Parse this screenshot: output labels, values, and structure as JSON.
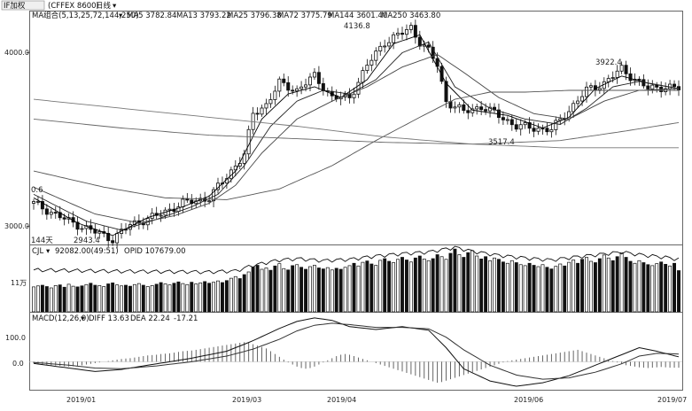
{
  "header": {
    "tab_label": "IF加权",
    "instrument": "(CFFEX 8600)",
    "period": "日线",
    "indicator_group": "MA组合(5,13,25,72,144,250)",
    "ma_readouts": [
      "MA5 3782.84",
      "MA13 3793.22",
      "MA25 3796.38",
      "MA72 3775.79",
      "MA144 3601.40",
      "MA250 3463.80"
    ]
  },
  "price_axis": {
    "ticks": [
      "4000.0",
      "3000.0"
    ],
    "range": [
      2920,
      4220
    ]
  },
  "annotations": {
    "high_label": "4136.8",
    "second_high_label": "3922.4",
    "mid_low_label": "3517.4",
    "low_label": "2943.4",
    "left_partial_label": "0.6",
    "days_label": "144天"
  },
  "volume_panel": {
    "header": "CJL",
    "cjl_value": "92082.00(49:51)",
    "opid": "OPID 107679.00",
    "tick": "11万"
  },
  "macd_panel": {
    "header": "MACD(12,26,9)",
    "diff": "DIFF 13.63",
    "dea": "DEA 22.24",
    "value": "-17.21",
    "ticks": [
      "100.0",
      "0.0"
    ]
  },
  "x_axis": {
    "labels": [
      "2019/01",
      "2019/03",
      "2019/04",
      "2019/06",
      "2019/07"
    ]
  },
  "chart_data": {
    "type": "candlestick",
    "x_range": [
      "2018-12-17",
      "2019-07-01"
    ],
    "price_anchors": {
      "points": [
        [
          0,
          3150
        ],
        [
          8,
          3050
        ],
        [
          14,
          2990
        ],
        [
          18,
          2950
        ],
        [
          22,
          3030
        ],
        [
          28,
          3080
        ],
        [
          34,
          3150
        ],
        [
          40,
          3180
        ],
        [
          44,
          3300
        ],
        [
          48,
          3420
        ],
        [
          50,
          3650
        ],
        [
          53,
          3700
        ],
        [
          56,
          3820
        ],
        [
          60,
          3780
        ],
        [
          64,
          3860
        ],
        [
          68,
          3740
        ],
        [
          72,
          3740
        ],
        [
          76,
          3920
        ],
        [
          80,
          4050
        ],
        [
          84,
          4100
        ],
        [
          86,
          4130
        ],
        [
          88,
          4050
        ],
        [
          90,
          4000
        ],
        [
          92,
          3920
        ],
        [
          94,
          3720
        ],
        [
          98,
          3660
        ],
        [
          102,
          3690
        ],
        [
          106,
          3640
        ],
        [
          110,
          3580
        ],
        [
          114,
          3570
        ],
        [
          118,
          3560
        ],
        [
          122,
          3670
        ],
        [
          126,
          3780
        ],
        [
          130,
          3820
        ],
        [
          134,
          3900
        ],
        [
          136,
          3860
        ],
        [
          140,
          3790
        ],
        [
          144,
          3800
        ],
        [
          147,
          3790
        ]
      ]
    },
    "moving_averages": [
      {
        "name": "MA5",
        "color": "#000000",
        "points": [
          [
            0,
            3180
          ],
          [
            10,
            3040
          ],
          [
            18,
            2970
          ],
          [
            26,
            3070
          ],
          [
            34,
            3130
          ],
          [
            40,
            3190
          ],
          [
            46,
            3330
          ],
          [
            52,
            3620
          ],
          [
            58,
            3760
          ],
          [
            64,
            3800
          ],
          [
            70,
            3740
          ],
          [
            76,
            3840
          ],
          [
            82,
            4040
          ],
          [
            88,
            4090
          ],
          [
            94,
            3820
          ],
          [
            100,
            3670
          ],
          [
            108,
            3640
          ],
          [
            116,
            3570
          ],
          [
            122,
            3630
          ],
          [
            128,
            3790
          ],
          [
            134,
            3860
          ],
          [
            140,
            3820
          ],
          [
            147,
            3790
          ]
        ]
      },
      {
        "name": "MA13",
        "color": "#222222",
        "points": [
          [
            0,
            3200
          ],
          [
            12,
            3050
          ],
          [
            20,
            3000
          ],
          [
            28,
            3060
          ],
          [
            36,
            3130
          ],
          [
            42,
            3200
          ],
          [
            48,
            3360
          ],
          [
            54,
            3580
          ],
          [
            60,
            3720
          ],
          [
            66,
            3780
          ],
          [
            72,
            3760
          ],
          [
            78,
            3840
          ],
          [
            84,
            3990
          ],
          [
            90,
            4050
          ],
          [
            96,
            3800
          ],
          [
            104,
            3680
          ],
          [
            112,
            3620
          ],
          [
            120,
            3590
          ],
          [
            126,
            3680
          ],
          [
            132,
            3800
          ],
          [
            138,
            3830
          ],
          [
            147,
            3790
          ]
        ]
      },
      {
        "name": "MA25",
        "color": "#444444",
        "points": [
          [
            0,
            3240
          ],
          [
            14,
            3090
          ],
          [
            24,
            3040
          ],
          [
            32,
            3080
          ],
          [
            40,
            3150
          ],
          [
            46,
            3250
          ],
          [
            52,
            3430
          ],
          [
            60,
            3620
          ],
          [
            68,
            3720
          ],
          [
            76,
            3800
          ],
          [
            84,
            3910
          ],
          [
            92,
            3980
          ],
          [
            98,
            3880
          ],
          [
            106,
            3740
          ],
          [
            114,
            3650
          ],
          [
            122,
            3620
          ],
          [
            130,
            3720
          ],
          [
            138,
            3780
          ],
          [
            147,
            3790
          ]
        ]
      },
      {
        "name": "MA72",
        "color": "#555555",
        "points": [
          [
            0,
            3330
          ],
          [
            16,
            3240
          ],
          [
            30,
            3180
          ],
          [
            44,
            3170
          ],
          [
            56,
            3230
          ],
          [
            68,
            3360
          ],
          [
            78,
            3500
          ],
          [
            88,
            3630
          ],
          [
            96,
            3730
          ],
          [
            104,
            3770
          ],
          [
            112,
            3770
          ],
          [
            122,
            3780
          ],
          [
            134,
            3780
          ],
          [
            147,
            3780
          ]
        ]
      },
      {
        "name": "MA144",
        "color": "#666666",
        "points": [
          [
            0,
            3620
          ],
          [
            20,
            3570
          ],
          [
            40,
            3530
          ],
          [
            60,
            3510
          ],
          [
            80,
            3490
          ],
          [
            100,
            3480
          ],
          [
            120,
            3500
          ],
          [
            134,
            3550
          ],
          [
            147,
            3600
          ]
        ]
      },
      {
        "name": "MA250",
        "color": "#777777",
        "points": [
          [
            0,
            3730
          ],
          [
            20,
            3680
          ],
          [
            40,
            3630
          ],
          [
            60,
            3580
          ],
          [
            80,
            3520
          ],
          [
            100,
            3480
          ],
          [
            120,
            3460
          ],
          [
            147,
            3460
          ]
        ]
      }
    ],
    "volume": {
      "values": [
        7.5,
        7.8,
        8.0,
        7.6,
        7.2,
        7.9,
        8.1,
        7.4,
        8.3,
        7.7,
        7.5,
        7.8,
        8.2,
        8.6,
        8.0,
        7.9,
        7.6,
        8.4,
        8.7,
        8.1,
        7.8,
        8.0,
        7.7,
        8.2,
        8.5,
        8.0,
        7.6,
        7.9,
        8.3,
        8.8,
        8.4,
        8.1,
        8.6,
        9.0,
        8.5,
        8.2,
        8.9,
        8.4,
        8.7,
        9.1,
        8.6,
        8.9,
        9.3,
        8.8,
        9.4,
        10.1,
        10.6,
        10.0,
        11.2,
        12.0,
        13.5,
        14.0,
        12.8,
        13.2,
        12.5,
        13.8,
        14.5,
        13.0,
        12.6,
        13.9,
        14.2,
        13.4,
        12.8,
        13.6,
        14.0,
        13.2,
        12.9,
        13.3,
        12.6,
        13.1,
        12.8,
        13.4,
        13.9,
        14.6,
        13.8,
        14.9,
        15.3,
        14.4,
        14.0,
        15.5,
        16.0,
        15.2,
        14.8,
        15.8,
        16.4,
        15.6,
        15.0,
        16.2,
        16.8,
        15.9,
        15.4,
        16.0,
        17.2,
        16.6,
        15.8,
        17.6,
        18.9,
        17.2,
        16.4,
        17.8,
        18.4,
        16.8,
        15.9,
        16.6,
        15.4,
        16.2,
        15.8,
        15.0,
        14.6,
        15.4,
        14.8,
        14.2,
        13.9,
        14.6,
        14.0,
        13.6,
        14.2,
        13.4,
        12.9,
        13.7,
        14.4,
        13.8,
        14.9,
        15.6,
        14.6,
        15.8,
        16.4,
        15.2,
        14.8,
        16.0,
        17.1,
        16.2,
        15.4,
        16.6,
        17.8,
        16.4,
        15.2,
        14.6,
        15.4,
        14.8,
        14.2,
        13.9,
        14.5,
        15.0,
        14.3,
        13.8,
        14.6,
        12.4
      ],
      "opid_points": [
        [
          0,
          12.6
        ],
        [
          10,
          12.4
        ],
        [
          20,
          12.2
        ],
        [
          30,
          12.1
        ],
        [
          40,
          12.0
        ],
        [
          46,
          12.3
        ],
        [
          50,
          14.0
        ],
        [
          56,
          15.6
        ],
        [
          60,
          16.0
        ],
        [
          66,
          15.4
        ],
        [
          72,
          15.8
        ],
        [
          78,
          16.8
        ],
        [
          84,
          17.5
        ],
        [
          90,
          18.0
        ],
        [
          96,
          19.4
        ],
        [
          100,
          18.2
        ],
        [
          106,
          17.0
        ],
        [
          112,
          16.2
        ],
        [
          118,
          15.6
        ],
        [
          124,
          16.6
        ],
        [
          130,
          17.4
        ],
        [
          134,
          18.0
        ],
        [
          138,
          17.2
        ],
        [
          144,
          16.4
        ],
        [
          147,
          15.8
        ]
      ]
    },
    "macd": {
      "histogram": [
        -4,
        -6,
        -8,
        -9,
        -10,
        -11,
        -12,
        -13,
        -14,
        -13,
        -12,
        -10,
        -8,
        -6,
        -4,
        -2,
        0,
        2,
        4,
        6,
        8,
        9,
        10,
        12,
        14,
        16,
        18,
        19,
        20,
        22,
        23,
        24,
        26,
        28,
        30,
        31,
        32,
        34,
        36,
        38,
        40,
        42,
        44,
        46,
        48,
        50,
        52,
        54,
        56,
        54,
        50,
        46,
        42,
        38,
        30,
        22,
        14,
        6,
        -2,
        -8,
        -14,
        -18,
        -20,
        -18,
        -14,
        -8,
        -2,
        4,
        10,
        16,
        20,
        22,
        20,
        16,
        12,
        8,
        4,
        0,
        -4,
        -8,
        -12,
        -16,
        -20,
        -24,
        -28,
        -32,
        -36,
        -40,
        -44,
        -48,
        -52,
        -56,
        -60,
        -58,
        -54,
        -50,
        -46,
        -42,
        -38,
        -34,
        -30,
        -26,
        -22,
        -18,
        -14,
        -10,
        -6,
        -2,
        2,
        4,
        6,
        8,
        10,
        12,
        14,
        16,
        18,
        20,
        22,
        24,
        26,
        28,
        30,
        32,
        34,
        30,
        26,
        22,
        18,
        14,
        10,
        6,
        2,
        -2,
        -6,
        -10,
        -12,
        -14,
        -16,
        -17,
        -18,
        -17,
        -16,
        -15,
        -16,
        -17,
        -17,
        -17
      ],
      "diff_points": [
        [
          0,
          -5
        ],
        [
          8,
          -18
        ],
        [
          14,
          -28
        ],
        [
          20,
          -22
        ],
        [
          28,
          -6
        ],
        [
          36,
          10
        ],
        [
          44,
          30
        ],
        [
          50,
          60
        ],
        [
          56,
          95
        ],
        [
          60,
          115
        ],
        [
          64,
          125
        ],
        [
          68,
          118
        ],
        [
          72,
          100
        ],
        [
          78,
          92
        ],
        [
          84,
          100
        ],
        [
          90,
          90
        ],
        [
          94,
          40
        ],
        [
          98,
          -20
        ],
        [
          104,
          -55
        ],
        [
          110,
          -70
        ],
        [
          116,
          -60
        ],
        [
          122,
          -40
        ],
        [
          128,
          -10
        ],
        [
          134,
          20
        ],
        [
          138,
          40
        ],
        [
          142,
          30
        ],
        [
          147,
          14
        ]
      ],
      "dea_points": [
        [
          0,
          -2
        ],
        [
          8,
          -10
        ],
        [
          14,
          -18
        ],
        [
          20,
          -20
        ],
        [
          28,
          -12
        ],
        [
          36,
          0
        ],
        [
          44,
          16
        ],
        [
          50,
          36
        ],
        [
          56,
          64
        ],
        [
          60,
          88
        ],
        [
          64,
          104
        ],
        [
          68,
          110
        ],
        [
          72,
          106
        ],
        [
          78,
          98
        ],
        [
          84,
          98
        ],
        [
          90,
          94
        ],
        [
          94,
          70
        ],
        [
          98,
          34
        ],
        [
          104,
          -10
        ],
        [
          110,
          -38
        ],
        [
          116,
          -50
        ],
        [
          122,
          -46
        ],
        [
          128,
          -30
        ],
        [
          134,
          -6
        ],
        [
          138,
          16
        ],
        [
          142,
          24
        ],
        [
          147,
          22
        ]
      ],
      "range": [
        -80,
        140
      ]
    }
  }
}
